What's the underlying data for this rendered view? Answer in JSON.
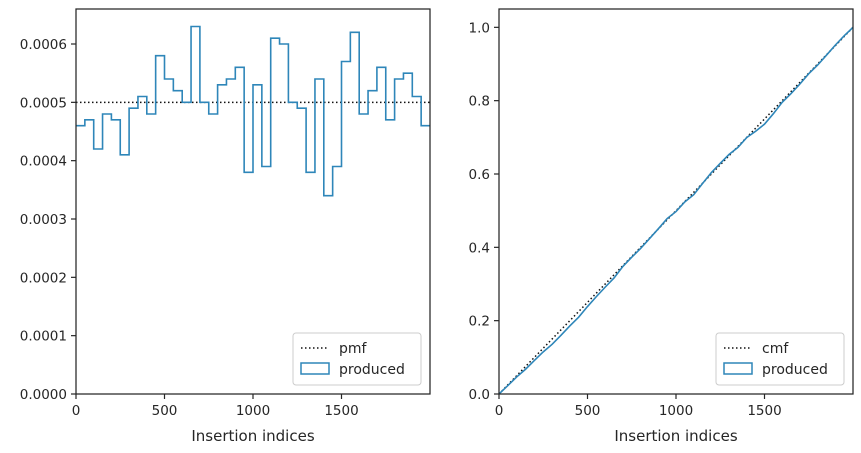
{
  "colors": {
    "produced": "#2e86b9",
    "reference": "#111111",
    "axis": "#262626",
    "legend_border": "#cccccc"
  },
  "chart_data": [
    {
      "type": "line",
      "xlabel": "Insertion indices",
      "ylabel": "",
      "xlim": [
        0,
        2000
      ],
      "ylim": [
        0,
        0.00066
      ],
      "xticks": [
        0,
        500,
        1000,
        1500
      ],
      "xtick_labels": [
        "0",
        "500",
        "1000",
        "1500"
      ],
      "yticks": [
        0,
        0.0001,
        0.0002,
        0.0003,
        0.0004,
        0.0005,
        0.0006
      ],
      "ytick_labels": [
        "0.0000",
        "0.0001",
        "0.0002",
        "0.0003",
        "0.0004",
        "0.0005",
        "0.0006"
      ],
      "grid": false,
      "legend_position": "lower-right",
      "legend": [
        "pmf",
        "produced"
      ],
      "series": [
        {
          "name": "pmf",
          "style": "dotted",
          "x": [
            0,
            2000
          ],
          "y": [
            0.0005,
            0.0005
          ]
        },
        {
          "name": "produced",
          "style": "step",
          "bin_edges": [
            0,
            50,
            100,
            150,
            200,
            250,
            300,
            350,
            400,
            450,
            500,
            550,
            600,
            650,
            700,
            750,
            800,
            850,
            900,
            950,
            1000,
            1050,
            1100,
            1150,
            1200,
            1250,
            1300,
            1350,
            1400,
            1450,
            1500,
            1550,
            1600,
            1650,
            1700,
            1750,
            1800,
            1850,
            1900,
            1950,
            2000
          ],
          "values": [
            0.00046,
            0.00047,
            0.00042,
            0.00048,
            0.00047,
            0.00041,
            0.00049,
            0.00051,
            0.00048,
            0.00058,
            0.00054,
            0.00052,
            0.0005,
            0.00063,
            0.0005,
            0.00048,
            0.00053,
            0.00054,
            0.00056,
            0.00038,
            0.00053,
            0.00039,
            0.00061,
            0.0006,
            0.0005,
            0.00049,
            0.00038,
            0.00054,
            0.00034,
            0.00039,
            0.00057,
            0.00062,
            0.00048,
            0.00052,
            0.00056,
            0.00047,
            0.00054,
            0.00055,
            0.00051,
            0.00046
          ]
        }
      ]
    },
    {
      "type": "line",
      "xlabel": "Insertion indices",
      "ylabel": "",
      "xlim": [
        0,
        2000
      ],
      "ylim": [
        0,
        1.05
      ],
      "xticks": [
        0,
        500,
        1000,
        1500
      ],
      "xtick_labels": [
        "0",
        "500",
        "1000",
        "1500"
      ],
      "yticks": [
        0,
        0.2,
        0.4,
        0.6,
        0.8,
        1.0
      ],
      "ytick_labels": [
        "0.0",
        "0.2",
        "0.4",
        "0.6",
        "0.8",
        "1.0"
      ],
      "grid": false,
      "legend_position": "lower-right",
      "legend": [
        "cmf",
        "produced"
      ],
      "series": [
        {
          "name": "cmf",
          "style": "dotted",
          "x": [
            0,
            2000
          ],
          "y": [
            0,
            1.0
          ]
        },
        {
          "name": "produced",
          "style": "line",
          "x": [
            0,
            50,
            100,
            150,
            200,
            250,
            300,
            350,
            400,
            450,
            500,
            550,
            600,
            650,
            700,
            750,
            800,
            850,
            900,
            950,
            1000,
            1050,
            1100,
            1150,
            1200,
            1250,
            1300,
            1350,
            1400,
            1450,
            1500,
            1550,
            1600,
            1650,
            1700,
            1750,
            1800,
            1850,
            1900,
            1950,
            2000
          ],
          "y": [
            0,
            0.023,
            0.0465,
            0.0675,
            0.0915,
            0.115,
            0.1355,
            0.16,
            0.1855,
            0.2095,
            0.2385,
            0.2655,
            0.2915,
            0.3165,
            0.348,
            0.373,
            0.397,
            0.4235,
            0.4505,
            0.4785,
            0.4975,
            0.524,
            0.5435,
            0.574,
            0.604,
            0.629,
            0.6535,
            0.6725,
            0.6995,
            0.7165,
            0.736,
            0.7645,
            0.7955,
            0.8195,
            0.8455,
            0.8735,
            0.897,
            0.924,
            0.9515,
            0.977,
            1.0
          ]
        }
      ]
    }
  ]
}
